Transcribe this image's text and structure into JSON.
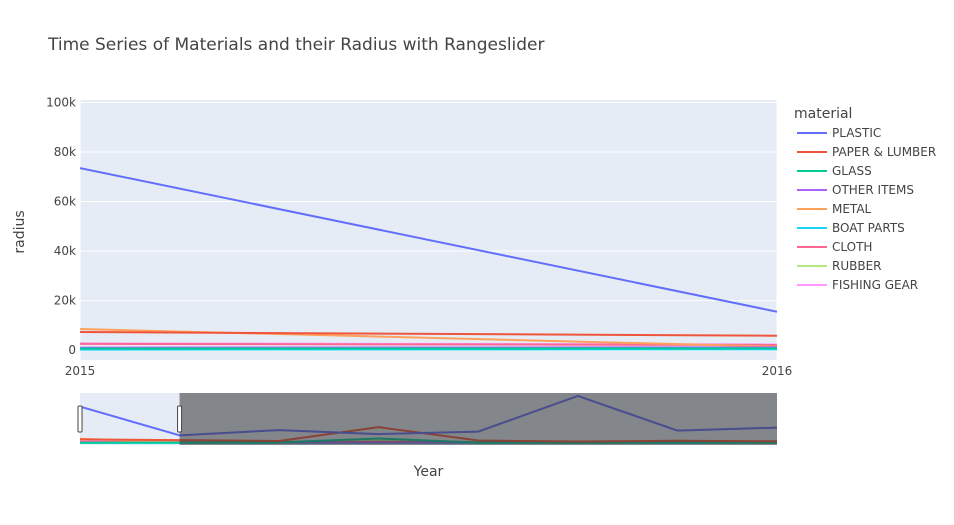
{
  "chart_data": {
    "type": "line",
    "title": "Time Series of Materials and their Radius with Rangeslider",
    "xlabel": "Year",
    "ylabel": "radius",
    "legend_title": "material",
    "legend_position": "right",
    "grid": true,
    "rangeslider": true,
    "x_tick_labels": [
      "2015",
      "2016"
    ],
    "y_tick_labels": [
      "0",
      "20k",
      "40k",
      "60k",
      "80k",
      "100k"
    ],
    "x_range": [
      2015,
      2016
    ],
    "ylim": [
      -4000,
      101000
    ],
    "x": [
      2015,
      2016
    ],
    "series": [
      {
        "name": "PLASTIC",
        "color": "#636efa",
        "values": [
          73500,
          15500
        ]
      },
      {
        "name": "PAPER & LUMBER",
        "color": "#EF553B",
        "values": [
          7300,
          5800
        ]
      },
      {
        "name": "GLASS",
        "color": "#00cc96",
        "values": [
          600,
          700
        ]
      },
      {
        "name": "OTHER ITEMS",
        "color": "#ab63fa",
        "values": [
          1000,
          1100
        ]
      },
      {
        "name": "METAL",
        "color": "#FFA15A",
        "values": [
          8500,
          1400
        ]
      },
      {
        "name": "BOAT PARTS",
        "color": "#19d3f3",
        "values": [
          200,
          300
        ]
      },
      {
        "name": "CLOTH",
        "color": "#FF6692",
        "values": [
          2500,
          2100
        ]
      },
      {
        "name": "RUBBER",
        "color": "#B6E880",
        "values": [
          300,
          500
        ]
      },
      {
        "name": "FISHING GEAR",
        "color": "#FF97FF",
        "values": [
          2700,
          2300
        ]
      }
    ],
    "rangeslider_data": {
      "x": [
        0,
        1,
        2,
        3,
        4,
        5,
        6,
        7
      ],
      "selected_range": [
        0,
        1
      ],
      "series": [
        {
          "name": "PLASTIC",
          "values": [
            73500,
            15500,
            26000,
            18000,
            23000,
            95000,
            25000,
            31000
          ]
        },
        {
          "name": "PAPER & LUMBER",
          "values": [
            7300,
            5800,
            4000,
            32000,
            5000,
            3000,
            4500,
            3500
          ]
        },
        {
          "name": "GLASS",
          "values": [
            600,
            700,
            1200,
            9000,
            800,
            600,
            700,
            800
          ]
        },
        {
          "name": "OTHER ITEMS",
          "values": [
            1000,
            1100,
            900,
            1200,
            1000,
            800,
            1100,
            900
          ]
        },
        {
          "name": "METAL",
          "values": [
            8500,
            1400,
            1800,
            1600,
            1500,
            1300,
            2000,
            1500
          ]
        },
        {
          "name": "BOAT PARTS",
          "values": [
            200,
            300,
            250,
            300,
            200,
            250,
            300,
            200
          ]
        },
        {
          "name": "CLOTH",
          "values": [
            2500,
            2100,
            2300,
            2200,
            2000,
            2100,
            2300,
            2200
          ]
        },
        {
          "name": "RUBBER",
          "values": [
            300,
            500,
            600,
            4000,
            500,
            400,
            4500,
            500
          ]
        },
        {
          "name": "FISHING GEAR",
          "values": [
            2700,
            2300,
            2400,
            2500,
            2200,
            2300,
            2400,
            2300
          ]
        }
      ]
    }
  }
}
